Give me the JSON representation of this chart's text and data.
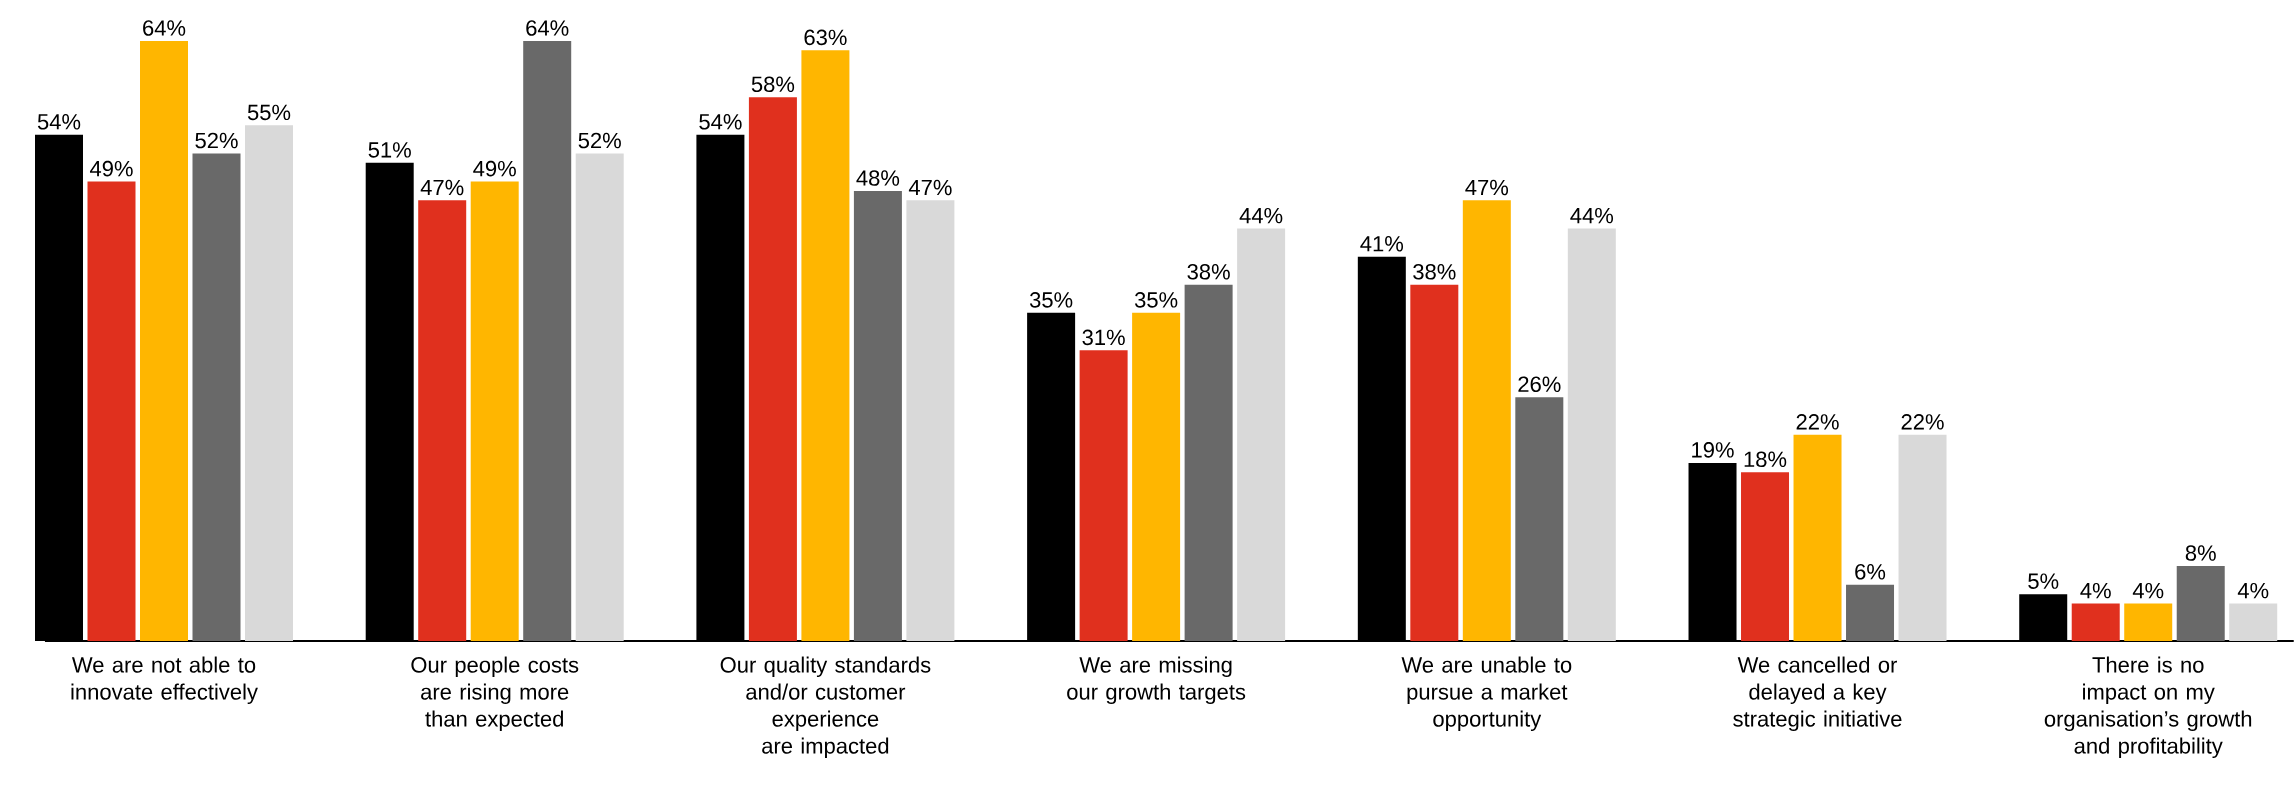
{
  "chart_data": {
    "type": "bar",
    "categories": [
      "We are not able to innovate effectively",
      "Our people costs are rising more than expected",
      "Our quality standards and/or customer experience are impacted",
      "We are missing our growth targets",
      "We are unable to pursue a market opportunity",
      "We cancelled or delayed a key strategic initiative",
      "There is no impact on my organisation’s growth and profitability"
    ],
    "series": [
      {
        "color": "#000000",
        "values": [
          54,
          51,
          54,
          35,
          41,
          19,
          5
        ],
        "value_labels": [
          "54%",
          "51%",
          "54%",
          "35%",
          "41%",
          "19%",
          "5%"
        ]
      },
      {
        "color": "#e0301e",
        "values": [
          49,
          47,
          58,
          31,
          38,
          18,
          4
        ],
        "value_labels": [
          "49%",
          "47%",
          "58%",
          "31%",
          "38%",
          "18%",
          "4%"
        ]
      },
      {
        "color": "#ffb600",
        "values": [
          64,
          49,
          63,
          35,
          47,
          22,
          4
        ],
        "value_labels": [
          "64%",
          "49%",
          "63%",
          "35%",
          "47%",
          "22%",
          "4%"
        ]
      },
      {
        "color": "#696969",
        "values": [
          52,
          64,
          48,
          38,
          26,
          6,
          8
        ],
        "value_labels": [
          "52%",
          "64%",
          "48%",
          "38%",
          "26%",
          "6%",
          "8%"
        ]
      },
      {
        "color": "#d9d9d9",
        "values": [
          55,
          52,
          47,
          44,
          44,
          22,
          4
        ],
        "value_labels": [
          "55%",
          "52%",
          "47%",
          "44%",
          "44%",
          "22%",
          "4%"
        ]
      }
    ]
  }
}
